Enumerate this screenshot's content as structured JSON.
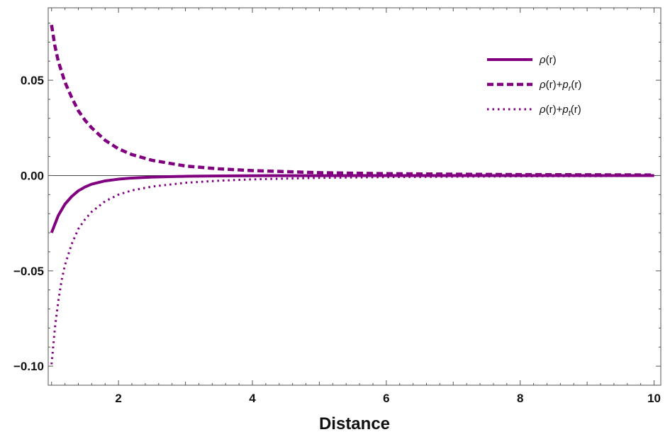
{
  "chart_data": {
    "type": "line",
    "title": "",
    "xlabel": "Distance",
    "ylabel": "",
    "xlim": [
      0.95,
      10.1
    ],
    "ylim": [
      -0.11,
      0.088
    ],
    "x_ticks": [
      2,
      4,
      6,
      8,
      10
    ],
    "x_tick_labels": [
      "2",
      "4",
      "6",
      "8",
      "10"
    ],
    "y_ticks": [
      0.05,
      0.0,
      -0.05,
      -0.1
    ],
    "y_tick_labels": [
      "0.05",
      "0.00",
      "−0.05",
      "−0.10"
    ],
    "x_minor_step": 0.2,
    "y_minor_step": 0.01,
    "zero_line": true,
    "grid": false,
    "legend_position": "top-right",
    "color": "#800080",
    "series": [
      {
        "id": "rho",
        "name": "ρ(r)",
        "style": "solid",
        "x": [
          1.0,
          1.1,
          1.2,
          1.3,
          1.4,
          1.5,
          1.6,
          1.8,
          2.0,
          2.2,
          2.5,
          3.0,
          3.5,
          4.0,
          5.0,
          6.0,
          7.0,
          8.0,
          9.0,
          10.0
        ],
        "y": [
          -0.03,
          -0.021,
          -0.015,
          -0.011,
          -0.008,
          -0.006,
          -0.0045,
          -0.0028,
          -0.0019,
          -0.0013,
          -0.0008,
          -0.0004,
          -0.0002,
          -0.0001,
          -5e-05,
          -2e-05,
          -1e-05,
          0.0,
          0.0,
          0.0
        ]
      },
      {
        "id": "rho_pr",
        "name": "ρ(r)+pᵣ(r)",
        "style": "dashed",
        "x": [
          1.0,
          1.05,
          1.1,
          1.2,
          1.3,
          1.4,
          1.5,
          1.6,
          1.8,
          2.0,
          2.2,
          2.5,
          3.0,
          3.5,
          4.0,
          5.0,
          6.0,
          7.0,
          8.0,
          9.0,
          10.0
        ],
        "y": [
          0.079,
          0.068,
          0.06,
          0.049,
          0.041,
          0.034,
          0.029,
          0.025,
          0.0185,
          0.014,
          0.011,
          0.008,
          0.005,
          0.0035,
          0.0026,
          0.0015,
          0.001,
          0.0007,
          0.0005,
          0.0004,
          0.0003
        ]
      },
      {
        "id": "rho_pt",
        "name": "ρ(r)+pₜ(r)",
        "style": "dotted",
        "x": [
          1.0,
          1.05,
          1.1,
          1.15,
          1.2,
          1.3,
          1.4,
          1.5,
          1.6,
          1.8,
          2.0,
          2.2,
          2.5,
          3.0,
          3.5,
          4.0,
          5.0,
          6.0,
          7.0,
          8.0,
          9.0,
          10.0
        ],
        "y": [
          -0.099,
          -0.08,
          -0.066,
          -0.055,
          -0.047,
          -0.036,
          -0.028,
          -0.023,
          -0.019,
          -0.0135,
          -0.01,
          -0.0078,
          -0.0058,
          -0.0038,
          -0.0027,
          -0.002,
          -0.0012,
          -0.0008,
          -0.0006,
          -0.0004,
          -0.0003,
          -0.0002
        ]
      }
    ],
    "legend": [
      {
        "series": "rho",
        "pre": "ρ(r)",
        "sym": "",
        "sub": "",
        "post": ""
      },
      {
        "series": "rho_pr",
        "pre": "ρ(r)+",
        "sym": "p",
        "sub": "r",
        "post": "(r)"
      },
      {
        "series": "rho_pt",
        "pre": "ρ(r)+",
        "sym": "p",
        "sub": "t",
        "post": "(r)"
      }
    ]
  }
}
